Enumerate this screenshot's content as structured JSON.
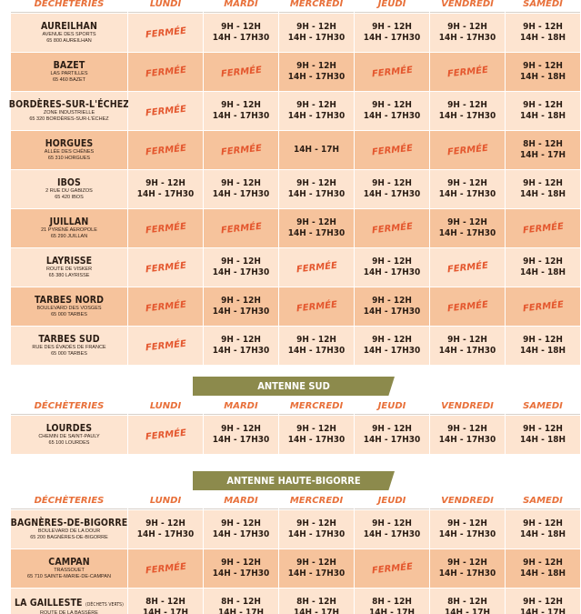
{
  "headers": [
    "DÉCHÈTERIES",
    "LUNDI",
    "MARDI",
    "MERCREDI",
    "JEUDI",
    "VENDREDI",
    "SAMEDI"
  ],
  "sections": [
    {
      "title": "",
      "rows": [
        {
          "name": "AUREILHAN",
          "tag": "",
          "addr": [
            "AVENUE DES SPORTS",
            "65 800 AUREILHAN"
          ],
          "days": [
            "FERMÉE",
            "9H - 12H|14H - 17H30",
            "9H - 12H|14H - 17H30",
            "9H - 12H|14H - 17H30",
            "9H - 12H|14H - 17H30",
            "9H - 12H|14H - 18H"
          ]
        },
        {
          "name": "BAZET",
          "tag": "",
          "addr": [
            "LAS PARTILLES",
            "65 460 BAZET"
          ],
          "days": [
            "FERMÉE",
            "FERMÉE",
            "9H - 12H|14H - 17H30",
            "FERMÉE",
            "FERMÉE",
            "9H - 12H|14H - 18H"
          ]
        },
        {
          "name": "BORDÈRES-SUR-L'ÉCHEZ",
          "tag": "",
          "addr": [
            "ZONE INDUSTRIELLE",
            "65 320 BORDÈRES-SUR-L'ÉCHEZ"
          ],
          "days": [
            "FERMÉE",
            "9H - 12H|14H - 17H30",
            "9H - 12H|14H - 17H30",
            "9H - 12H|14H - 17H30",
            "9H - 12H|14H - 17H30",
            "9H - 12H|14H - 18H"
          ]
        },
        {
          "name": "HORGUES",
          "tag": "",
          "addr": [
            "ALLÉE DES CHÊNES",
            "65 310 HORGUES"
          ],
          "days": [
            "FERMÉE",
            "FERMÉE",
            "14H - 17H",
            "FERMÉE",
            "FERMÉE",
            "8H - 12H|14H - 17H"
          ]
        },
        {
          "name": "IBOS",
          "tag": "",
          "addr": [
            "2 RUE DU GABIZOS",
            "65 420 IBOS"
          ],
          "days": [
            "9H - 12H|14H - 17H30",
            "9H - 12H|14H - 17H30",
            "9H - 12H|14H - 17H30",
            "9H - 12H|14H - 17H30",
            "9H - 12H|14H - 17H30",
            "9H - 12H|14H - 18H"
          ]
        },
        {
          "name": "JUILLAN",
          "tag": "",
          "addr": [
            "21 PYRÉNÉ AEROPOLE",
            "65 290 JUILLAN"
          ],
          "days": [
            "FERMÉE",
            "FERMÉE",
            "9H - 12H|14H - 17H30",
            "FERMÉE",
            "9H - 12H|14H - 17H30",
            "FERMÉE"
          ]
        },
        {
          "name": "LAYRISSE",
          "tag": "",
          "addr": [
            "ROUTE DE VISKER",
            "65 380 LAYRISSE"
          ],
          "days": [
            "FERMÉE",
            "9H - 12H|14H - 17H30",
            "FERMÉE",
            "9H - 12H|14H - 17H30",
            "FERMÉE",
            "9H - 12H|14H - 18H"
          ]
        },
        {
          "name": "TARBES NORD",
          "tag": "",
          "addr": [
            "BOULEVARD DES VOSGES",
            "65 000 TARBES"
          ],
          "days": [
            "FERMÉE",
            "9H - 12H|14H - 17H30",
            "FERMÉE",
            "9H - 12H|14H - 17H30",
            "FERMÉE",
            "FERMÉE"
          ]
        },
        {
          "name": "TARBES SUD",
          "tag": "",
          "addr": [
            "RUE DES ÉVADÉS DE FRANCE",
            "65 000 TARBES"
          ],
          "days": [
            "FERMÉE",
            "9H - 12H|14H - 17H30",
            "9H - 12H|14H - 17H30",
            "9H - 12H|14H - 17H30",
            "9H - 12H|14H - 17H30",
            "9H - 12H|14H - 18H"
          ]
        }
      ]
    },
    {
      "title": "ANTENNE SUD",
      "rows": [
        {
          "name": "LOURDES",
          "tag": "",
          "addr": [
            "CHEMIN DE SAINT-PAULY",
            "65 100 LOURDES"
          ],
          "days": [
            "FERMÉE",
            "9H - 12H|14H - 17H30",
            "9H - 12H|14H - 17H30",
            "9H - 12H|14H - 17H30",
            "9H - 12H|14H - 17H30",
            "9H - 12H|14H - 18H"
          ]
        }
      ]
    },
    {
      "title": "ANTENNE HAUTE-BIGORRE",
      "rows": [
        {
          "name": "BAGNÈRES-DE-BIGORRE",
          "tag": "",
          "addr": [
            "BOULEVARD DE LA DOUR",
            "65 200 BAGNÈRES-DE-BIGORRE"
          ],
          "days": [
            "9H - 12H|14H - 17H30",
            "9H - 12H|14H - 17H30",
            "9H - 12H|14H - 17H30",
            "9H - 12H|14H - 17H30",
            "9H - 12H|14H - 17H30",
            "9H - 12H|14H - 18H"
          ]
        },
        {
          "name": "CAMPAN",
          "tag": "",
          "addr": [
            "TRASSOUET",
            "65 710 SAINTE-MARIE-DE-CAMPAN"
          ],
          "days": [
            "FERMÉE",
            "9H - 12H|14H - 17H30",
            "9H - 12H|14H - 17H30",
            "FERMÉE",
            "9H - 12H|14H - 17H30",
            "9H - 12H|14H - 18H"
          ]
        },
        {
          "name": "LA GAILLESTE",
          "tag": "(DÉCHETS VERTS)",
          "addr": [
            "ROUTE DE LA BASSÈRE",
            ""
          ],
          "days": [
            "8H - 12H|14H - 17H",
            "8H - 12H|14H - 17H",
            "8H - 12H|14H - 17H",
            "8H - 12H|14H - 17H",
            "8H - 12H|14H - 17H",
            "9H - 12H|14H - 17H"
          ]
        }
      ]
    }
  ],
  "colors": {
    "header_text": "#e8703a",
    "closed_text": "#e4572e",
    "row_light": "#fde4d0",
    "row_dark": "#f6c39c",
    "banner": "#8c8a4c"
  }
}
